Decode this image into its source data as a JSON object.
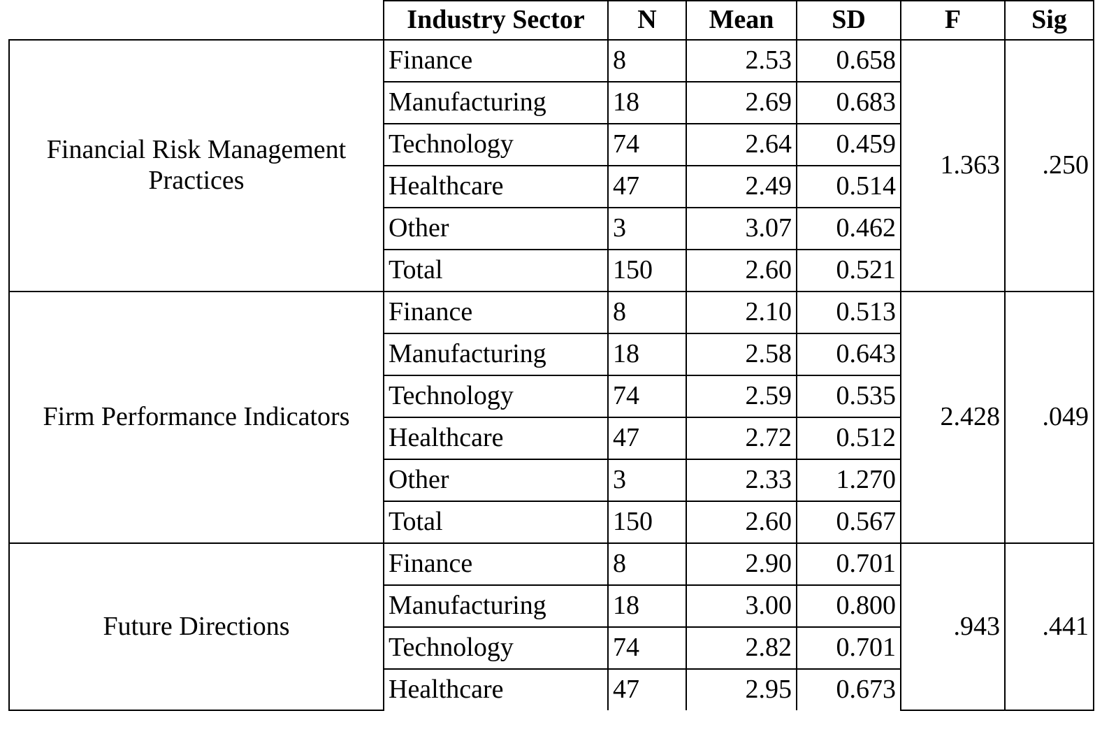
{
  "headers": {
    "variable": "",
    "sector": "Industry Sector",
    "n": "N",
    "mean": "Mean",
    "sd": "SD",
    "f": "F",
    "sig": "Sig"
  },
  "groups": [
    {
      "variable": "Financial Risk Management Practices",
      "f": "1.363",
      "sig": ".250",
      "rows": [
        {
          "sector": "Finance",
          "n": "8",
          "mean": "2.53",
          "sd": "0.658"
        },
        {
          "sector": "Manufacturing",
          "n": "18",
          "mean": "2.69",
          "sd": "0.683"
        },
        {
          "sector": "Technology",
          "n": "74",
          "mean": "2.64",
          "sd": "0.459"
        },
        {
          "sector": "Healthcare",
          "n": "47",
          "mean": "2.49",
          "sd": "0.514"
        },
        {
          "sector": "Other",
          "n": "3",
          "mean": "3.07",
          "sd": "0.462"
        },
        {
          "sector": "Total",
          "n": "150",
          "mean": "2.60",
          "sd": "0.521"
        }
      ]
    },
    {
      "variable": "Firm Performance Indicators",
      "f": "2.428",
      "sig": ".049",
      "rows": [
        {
          "sector": "Finance",
          "n": "8",
          "mean": "2.10",
          "sd": "0.513"
        },
        {
          "sector": "Manufacturing",
          "n": "18",
          "mean": "2.58",
          "sd": "0.643"
        },
        {
          "sector": "Technology",
          "n": "74",
          "mean": "2.59",
          "sd": "0.535"
        },
        {
          "sector": "Healthcare",
          "n": "47",
          "mean": "2.72",
          "sd": "0.512"
        },
        {
          "sector": "Other",
          "n": "3",
          "mean": "2.33",
          "sd": "1.270"
        },
        {
          "sector": "Total",
          "n": "150",
          "mean": "2.60",
          "sd": "0.567"
        }
      ]
    },
    {
      "variable": "Future Directions",
      "f": ".943",
      "sig": ".441",
      "rows": [
        {
          "sector": "Finance",
          "n": "8",
          "mean": "2.90",
          "sd": "0.701"
        },
        {
          "sector": "Manufacturing",
          "n": "18",
          "mean": "3.00",
          "sd": "0.800"
        },
        {
          "sector": "Technology",
          "n": "74",
          "mean": "2.82",
          "sd": "0.701"
        },
        {
          "sector": "Healthcare",
          "n": "47",
          "mean": "2.95",
          "sd": "0.673"
        }
      ]
    }
  ]
}
